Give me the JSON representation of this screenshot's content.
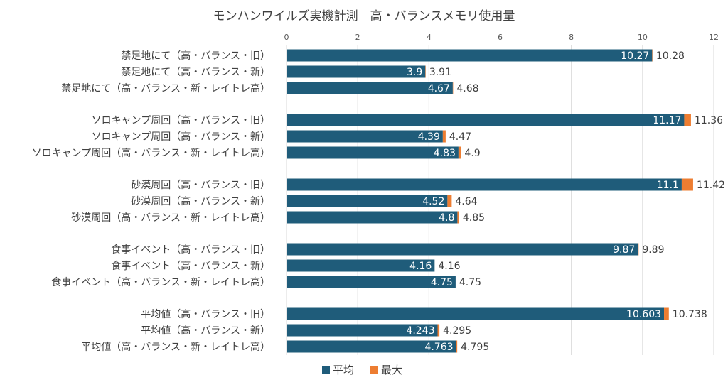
{
  "chart_data": {
    "type": "bar",
    "orientation": "horizontal",
    "stacked": true,
    "title": "モンハンワイルズ実機計測　高・バランスメモリ使用量",
    "xlim": [
      0,
      12
    ],
    "xticks": [
      "0",
      "2",
      "4",
      "6",
      "8",
      "10",
      "12"
    ],
    "grid": true,
    "legend_position": "bottom",
    "groups": [
      {
        "rows": [
          {
            "label": "禁足地にて（高・バランス・旧）",
            "avg": 10.27,
            "max": 10.28,
            "avg_label": "10.27",
            "max_label": "10.28"
          },
          {
            "label": "禁足地にて（高・バランス・新）",
            "avg": 3.9,
            "max": 3.91,
            "avg_label": "3.9",
            "max_label": "3.91"
          },
          {
            "label": "禁足地にて（高・バランス・新・レイトレ高）",
            "avg": 4.67,
            "max": 4.68,
            "avg_label": "4.67",
            "max_label": "4.68"
          }
        ]
      },
      {
        "rows": [
          {
            "label": "ソロキャンプ周回（高・バランス・旧）",
            "avg": 11.17,
            "max": 11.36,
            "avg_label": "11.17",
            "max_label": "11.36"
          },
          {
            "label": "ソロキャンプ周回（高・バランス・新）",
            "avg": 4.39,
            "max": 4.47,
            "avg_label": "4.39",
            "max_label": "4.47"
          },
          {
            "label": "ソロキャンプ周回（高・バランス・新・レイトレ高）",
            "avg": 4.83,
            "max": 4.9,
            "avg_label": "4.83",
            "max_label": "4.9"
          }
        ]
      },
      {
        "rows": [
          {
            "label": "砂漠周回（高・バランス・旧）",
            "avg": 11.1,
            "max": 11.42,
            "avg_label": "11.1",
            "max_label": "11.42"
          },
          {
            "label": "砂漠周回（高・バランス・新）",
            "avg": 4.52,
            "max": 4.64,
            "avg_label": "4.52",
            "max_label": "4.64"
          },
          {
            "label": "砂漠周回（高・バランス・新・レイトレ高）",
            "avg": 4.8,
            "max": 4.85,
            "avg_label": "4.8",
            "max_label": "4.85"
          }
        ]
      },
      {
        "rows": [
          {
            "label": "食事イベント（高・バランス・旧）",
            "avg": 9.87,
            "max": 9.89,
            "avg_label": "9.87",
            "max_label": "9.89"
          },
          {
            "label": "食事イベント（高・バランス・新）",
            "avg": 4.16,
            "max": 4.16,
            "avg_label": "4.16",
            "max_label": "4.16"
          },
          {
            "label": "食事イベント（高・バランス・新・レイトレ高）",
            "avg": 4.75,
            "max": 4.75,
            "avg_label": "4.75",
            "max_label": "4.75"
          }
        ]
      },
      {
        "rows": [
          {
            "label": "平均値（高・バランス・旧）",
            "avg": 10.603,
            "max": 10.738,
            "avg_label": "10.603",
            "max_label": "10.738"
          },
          {
            "label": "平均値（高・バランス・新）",
            "avg": 4.243,
            "max": 4.295,
            "avg_label": "4.243",
            "max_label": "4.295"
          },
          {
            "label": "平均値（高・バランス・新・レイトレ高）",
            "avg": 4.763,
            "max": 4.795,
            "avg_label": "4.763",
            "max_label": "4.795"
          }
        ]
      }
    ],
    "series": [
      {
        "name": "平均",
        "color": "#1f5c7a"
      },
      {
        "name": "最大",
        "color": "#ed7d31"
      }
    ]
  }
}
